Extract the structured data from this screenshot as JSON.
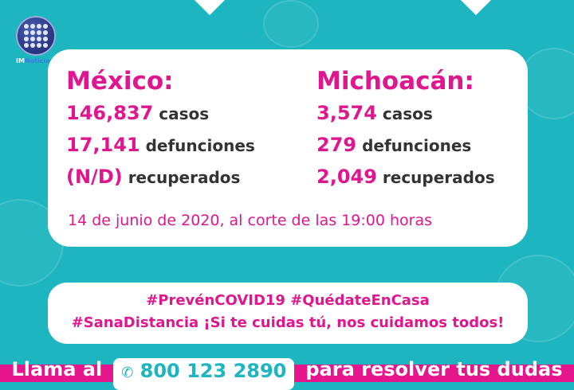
{
  "logo": {
    "brand_a": "IM",
    "brand_b": "Noticias"
  },
  "mexico": {
    "title": "México:",
    "casos": "146,837",
    "casos_label": "casos",
    "defunciones": "17,141",
    "defunciones_label": "defunciones",
    "recuperados": "(N/D)",
    "recuperados_label": "recuperados"
  },
  "michoacan": {
    "title": "Michoacán:",
    "casos": "3,574",
    "casos_label": "casos",
    "defunciones": "279",
    "defunciones_label": "defunciones",
    "recuperados": "2,049",
    "recuperados_label": "recuperados"
  },
  "date": "14 de junio de 2020, al corte de las 19:00 horas",
  "hashtags": {
    "line1": "#PrevénCOVID19 #QuédateEnCasa",
    "line2": "#SanaDistancia ¡Si te cuidas tú, nos cuidamos todos!"
  },
  "footer": {
    "pre": "Llama al",
    "phone_icon": "phone-icon",
    "phone": "800 123 2890",
    "post": "para resolver tus dudas"
  },
  "colors": {
    "teal": "#1db5bf",
    "magenta": "#e0168f"
  }
}
